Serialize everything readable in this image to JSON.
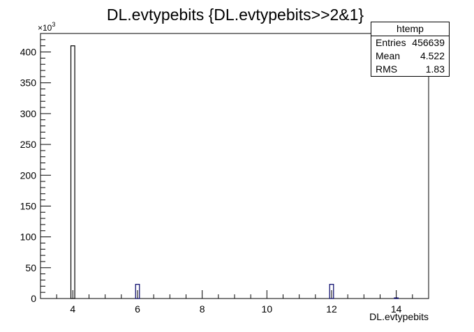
{
  "chart_data": {
    "type": "bar",
    "title": "DL.evtypebits {DL.evtypebits>>2&1}",
    "xlabel": "DL.evtypebits",
    "ylabel": "",
    "y_multiplier_label": "×10^3",
    "xlim": [
      3,
      15
    ],
    "ylim": [
      0,
      430
    ],
    "x_ticks": [
      4,
      6,
      8,
      10,
      12,
      14
    ],
    "y_ticks": [
      0,
      50,
      100,
      150,
      200,
      250,
      300,
      350,
      400
    ],
    "bin_width": 0.12,
    "bars": [
      {
        "x": 4,
        "value": 410
      },
      {
        "x": 6,
        "value": 23
      },
      {
        "x": 12,
        "value": 23
      },
      {
        "x": 14,
        "value": 1
      }
    ],
    "colors": {
      "bar_fill": "#ffffff",
      "bar_stroke_main": "#000000",
      "bar_stroke_other": "#000066",
      "axis": "#000000"
    }
  },
  "stats": {
    "name": "htemp",
    "rows": [
      {
        "label": "Entries",
        "value": "456639"
      },
      {
        "label": "Mean",
        "value": "4.522"
      },
      {
        "label": "RMS",
        "value": "1.83"
      }
    ]
  }
}
